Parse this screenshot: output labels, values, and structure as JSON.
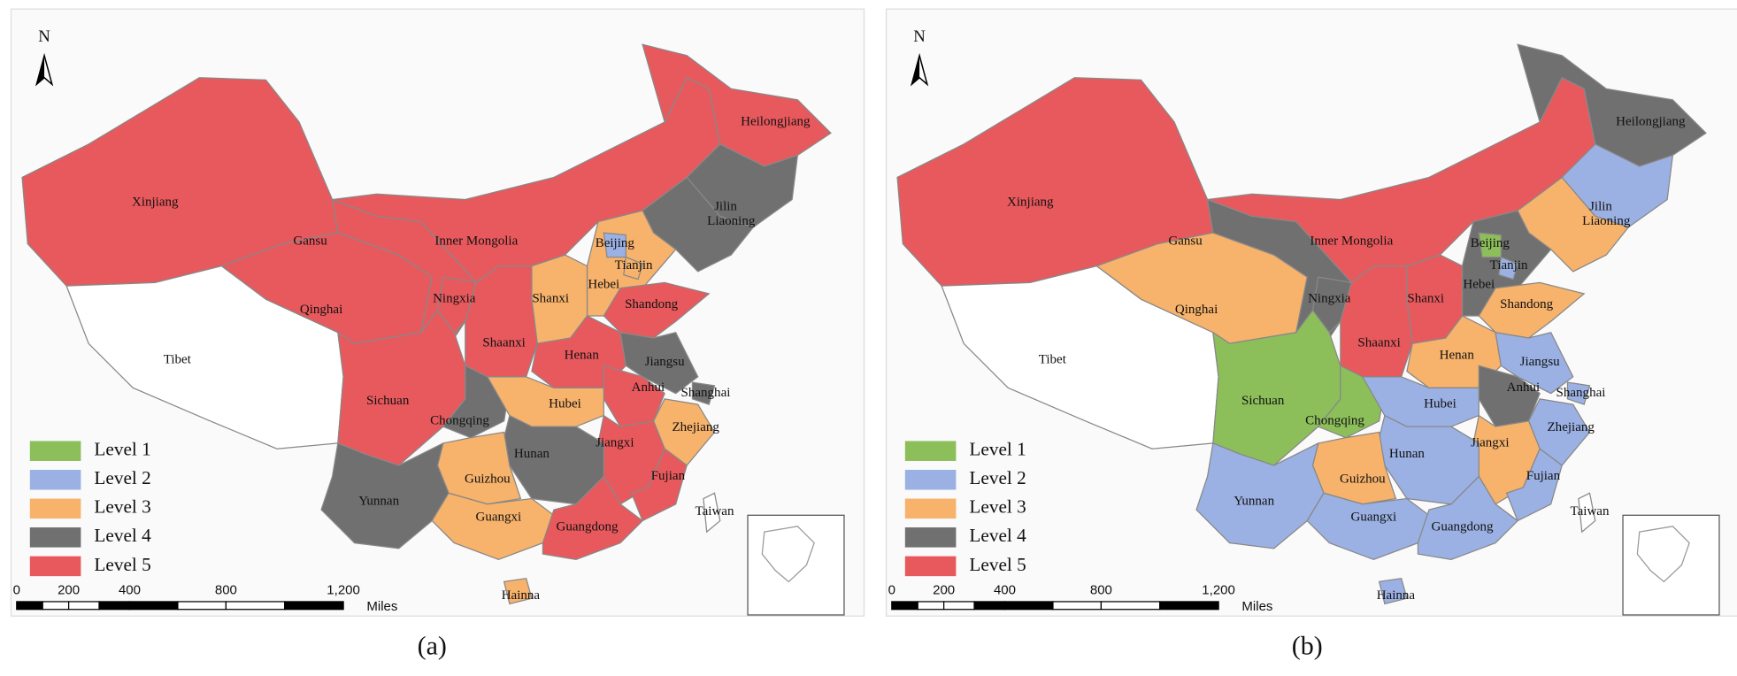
{
  "figure": {
    "provinces": [
      "Xinjiang",
      "Tibet",
      "Qinghai",
      "Gansu",
      "Inner Mongolia",
      "Heilongjiang",
      "Jilin",
      "Liaoning",
      "Hebei",
      "Beijing",
      "Tianjin",
      "Shanxi",
      "Shandong",
      "Ningxia",
      "Shaanxi",
      "Henan",
      "Jiangsu",
      "Shanghai",
      "Anhui",
      "Sichuan",
      "Chongqing",
      "Hubei",
      "Zhejiang",
      "Jiangxi",
      "Hunan",
      "Fujian",
      "Guizhou",
      "Yunnan",
      "Guangxi",
      "Guangdong",
      "Taiwan",
      "Hainna"
    ],
    "legend": [
      {
        "label": "Level 1",
        "color": "#8cbf5a"
      },
      {
        "label": "Level 2",
        "color": "#9bb1e3"
      },
      {
        "label": "Level 3",
        "color": "#f7b26b"
      },
      {
        "label": "Level 4",
        "color": "#707070"
      },
      {
        "label": "Level 5",
        "color": "#e8595d"
      }
    ],
    "scale": {
      "labels": [
        "0",
        "200",
        "400",
        "800",
        "1,200"
      ],
      "unit": "Miles"
    },
    "panels": [
      {
        "north": "N",
        "caption": "(a)",
        "levels": [
          5,
          null,
          5,
          5,
          5,
          5,
          4,
          4,
          3,
          2,
          3,
          3,
          5,
          5,
          5,
          5,
          4,
          4,
          5,
          5,
          4,
          3,
          3,
          5,
          4,
          5,
          3,
          4,
          3,
          5,
          null,
          3
        ]
      },
      {
        "north": "N",
        "caption": "(b)",
        "levels": [
          5,
          null,
          3,
          4,
          5,
          4,
          2,
          3,
          4,
          1,
          2,
          5,
          3,
          4,
          5,
          3,
          2,
          2,
          4,
          1,
          1,
          2,
          2,
          3,
          2,
          2,
          3,
          2,
          2,
          2,
          null,
          2
        ]
      }
    ]
  }
}
